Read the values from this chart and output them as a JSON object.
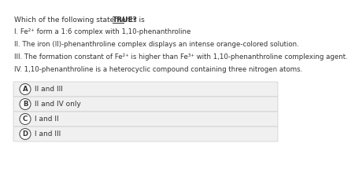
{
  "bg_color": "#ffffff",
  "question_normal": "Which of the following statements is ",
  "question_bold": "TRUE",
  "question_end": "?",
  "statements": [
    "I. Fe²⁺ form a 1:6 complex with 1,10-phenanthroline",
    "II. The iron (II)-phenanthroline complex displays an intense orange-colored solution.",
    "III. The formation constant of Fe²⁺ is higher than Fe³⁺ with 1,10-phenanthroline complexing agent.",
    "IV. 1,10-phenanthroline is a heterocyclic compound containing three nitrogen atoms."
  ],
  "options": [
    {
      "label": "A",
      "text": "II and III"
    },
    {
      "label": "B",
      "text": "II and IV only"
    },
    {
      "label": "C",
      "text": "I and II"
    },
    {
      "label": "D",
      "text": "I and III"
    }
  ],
  "option_bg": "#f0f0f0",
  "option_border": "#cccccc",
  "text_color": "#333333",
  "circle_color": "#ffffff",
  "circle_edge": "#555555",
  "fontsize_question": 6.5,
  "fontsize_stmt": 6.2,
  "fontsize_opt": 6.5,
  "fontsize_label": 6.2
}
